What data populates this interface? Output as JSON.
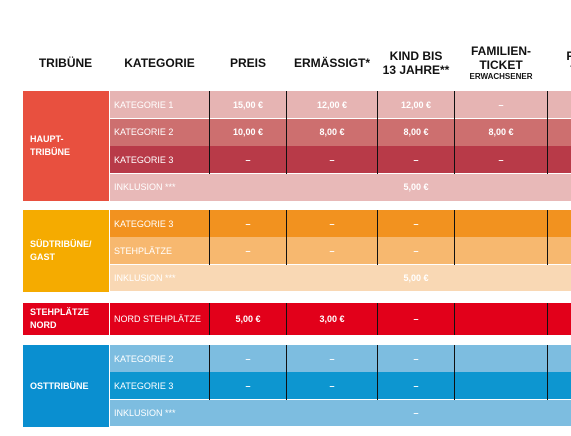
{
  "headers": [
    {
      "lines": [
        "TRIBÜNE"
      ]
    },
    {
      "lines": [
        "KATEGORIE"
      ]
    },
    {
      "lines": [
        "PREIS"
      ]
    },
    {
      "lines": [
        "ERMÄSSIGT*"
      ]
    },
    {
      "lines": [
        "KIND BIS",
        "13 JAHRE**"
      ]
    },
    {
      "lines": [
        "FAMILIEN-",
        "TICKET"
      ],
      "sub": "ERWACHSENER"
    },
    {
      "lines": [
        "FA",
        "T"
      ]
    }
  ],
  "sections": [
    {
      "label": [
        "HAUPT-",
        "TRIBÜNE"
      ],
      "color": "#e8503f",
      "rows": [
        {
          "category": "KATEGORIE 1",
          "color": "#e6b4b3",
          "cells": [
            "15,00 €",
            "12,00 €",
            "12,00 €",
            "–"
          ]
        },
        {
          "category": "KATEGORIE 2",
          "color": "#cd6f6f",
          "cells": [
            "10,00 €",
            "8,00 €",
            "8,00 €",
            "8,00 €"
          ]
        },
        {
          "category": "KATEGORIE 3",
          "color": "#b83a48",
          "cells": [
            "–",
            "–",
            "–",
            "–"
          ]
        },
        {
          "category": "INKLUSION ***",
          "color": "#e8b9b8",
          "merged": "5,00 €"
        }
      ]
    },
    {
      "label": [
        "SÜDTRIBÜNE/",
        "GAST"
      ],
      "color": "#f5ab00",
      "rows": [
        {
          "category": "KATEGORIE 3",
          "color": "#f2921f",
          "cells": [
            "–",
            "–",
            "–"
          ]
        },
        {
          "category": "STEHPLÄTZE",
          "color": "#f7b86f",
          "cells": [
            "–",
            "–",
            "–"
          ]
        },
        {
          "category": "INKLUSION ***",
          "color": "#f9d8b4",
          "merged": "5,00 €"
        }
      ]
    },
    {
      "label": [
        "STEHPLÄTZE",
        "NORD"
      ],
      "color": "#e2001a",
      "rows": [
        {
          "category": "NORD STEHPLÄTZE",
          "color": "#e2001a",
          "cells": [
            "5,00 €",
            "3,00 €",
            "–"
          ]
        }
      ]
    },
    {
      "label": [
        "OSTTRIBÜNE"
      ],
      "color": "#0a8fd0",
      "rows": [
        {
          "category": "KATEGORIE 2",
          "color": "#7dbde0",
          "cells": [
            "–",
            "–",
            "–"
          ]
        },
        {
          "category": "KATEGORIE 3",
          "color": "#0d96d0",
          "cells": [
            "–",
            "–",
            "–"
          ]
        },
        {
          "category": "INKLUSION ***",
          "color": "#7dbde0",
          "merged": "–"
        }
      ]
    }
  ]
}
